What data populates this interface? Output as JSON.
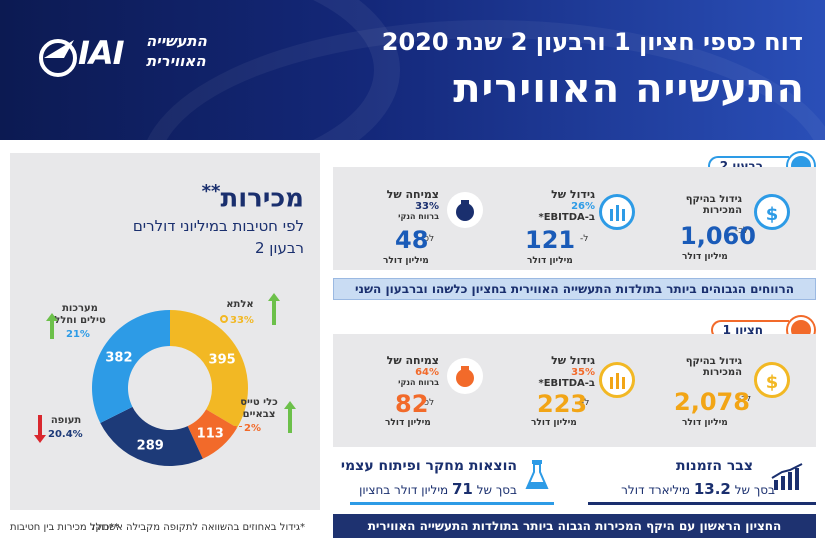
{
  "header": {
    "title_line1": "דוח כספי חציון 1 ורבעון 2 שנת 2020",
    "title_line2": "התעשייה האווירית",
    "logo": {
      "mark": "IAI",
      "name_line1": "התעשייה",
      "name_line2": "האווירית"
    }
  },
  "sales_panel": {
    "title": "מכירות",
    "title_mark": "**",
    "subtitle1": "לפי חטיבות במיליוני דולרים",
    "subtitle2": "רבעון 2",
    "segments": [
      {
        "name": "אלתא",
        "value": 395,
        "pct": "33%",
        "trend": "up",
        "color": "#f2b824"
      },
      {
        "name": "כלי טייס צבאיים",
        "value": 113,
        "pct": "2%",
        "trend": "up",
        "color": "#f26a2a"
      },
      {
        "name": "תעופה",
        "value": 289,
        "pct": "20.4%",
        "trend": "down",
        "color": "#1d3a78"
      },
      {
        "name": "מערכות טילים וחלל",
        "value": 382,
        "pct": "21%",
        "trend": "up",
        "color": "#2d9be6"
      }
    ]
  },
  "q2": {
    "tab_label": "רבעון 2",
    "kpis": [
      {
        "label1": "גידול בהיקף",
        "label2": "המכירות",
        "prefix": "לכ-",
        "value": "1,060",
        "unit": "מיליון דולר",
        "icon": "$"
      },
      {
        "label1": "גידול של",
        "label2": "26%",
        "label3": "ב-EBITDA*",
        "prefix": "ל-",
        "value": "121",
        "unit": "מיליון דולר",
        "icon": "chart-up-icon"
      },
      {
        "label1": "צמיחה של",
        "label2": "33%",
        "label3": "ברווח הנקי",
        "prefix": "לכ-",
        "value": "48",
        "unit": "מיליון דולר",
        "icon": "money-bag-icon"
      }
    ],
    "banner": "הרווחים הגבוהים ביותר בתולדות התעשייה האווירית בחציון כלשהו וברבעון השני"
  },
  "h1": {
    "tab_label": "חציון 1",
    "kpis": [
      {
        "label1": "גידול בהיקף",
        "label2": "המכירות",
        "prefix": "לכ-",
        "value": "2,078",
        "unit": "מיליון דולר",
        "icon": "$"
      },
      {
        "label1": "גידול של",
        "label2": "35%",
        "label3": "ב-EBITDA*",
        "prefix": "ל-",
        "value": "223",
        "unit": "מיליון דולר",
        "icon": "chart-up-icon"
      },
      {
        "label1": "צמיחה של",
        "label2": "64%",
        "label3": "ברווח הנקי",
        "prefix": "לכ-",
        "value": "82",
        "unit": "מיליון דולר",
        "icon": "money-bag-icon"
      }
    ]
  },
  "backlog": {
    "title": "צבר הזמנות",
    "prefix": "בסך של",
    "value": "13.2",
    "unit": "מיליארד דולר"
  },
  "rnd": {
    "title": "הוצאות מחקר ופיתוח עצמי",
    "prefix": "בסך של",
    "value": "71",
    "unit": "מיליון דולר בחציון"
  },
  "bottom_banner": "החציון הראשון עם היקף המכירות הגבוה ביותר בתולדות התעשייה האווירית",
  "footnotes": {
    "note1": "*גידול באחוזים בהשוואה לתקופה מקבילה אשתקד",
    "note2": "**כולל מכירות בין חטיבות"
  },
  "colors": {
    "navy": "#1a2f6e",
    "blue": "#2d9be6",
    "orange": "#f26a2a",
    "yellow": "#f2b824",
    "green": "#6cc04a"
  }
}
